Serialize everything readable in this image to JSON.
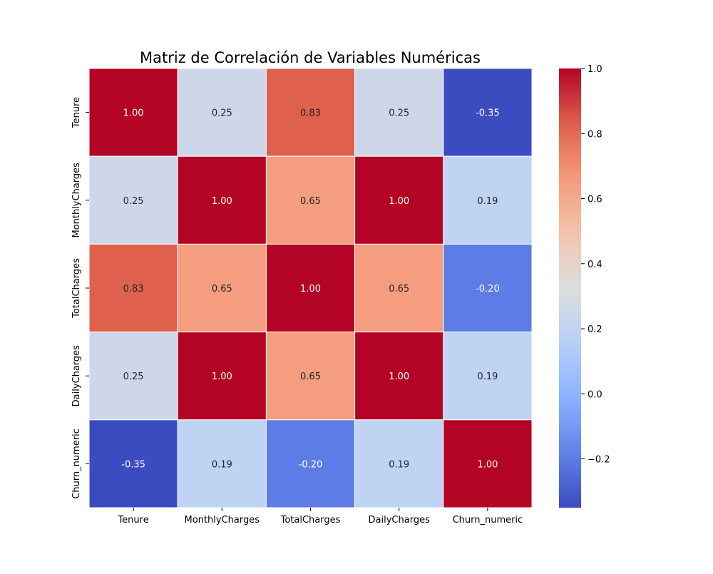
{
  "chart_data": {
    "type": "heatmap",
    "title": "Matriz de Correlación de Variables Numéricas",
    "xlabel": "",
    "ylabel": "",
    "x_categories": [
      "Tenure",
      "MonthlyCharges",
      "TotalCharges",
      "DailyCharges",
      "Churn_numeric"
    ],
    "y_categories": [
      "Tenure",
      "MonthlyCharges",
      "TotalCharges",
      "DailyCharges",
      "Churn_numeric"
    ],
    "values": [
      [
        1.0,
        0.25,
        0.83,
        0.25,
        -0.35
      ],
      [
        0.25,
        1.0,
        0.65,
        1.0,
        0.19
      ],
      [
        0.83,
        0.65,
        1.0,
        0.65,
        -0.2
      ],
      [
        0.25,
        1.0,
        0.65,
        1.0,
        0.19
      ],
      [
        -0.35,
        0.19,
        -0.2,
        0.19,
        1.0
      ]
    ],
    "value_format": "2 decimals",
    "colormap": "coolwarm",
    "color_range": [
      -0.35,
      1.0
    ],
    "colorbar_ticks": [
      -0.2,
      0.0,
      0.2,
      0.4,
      0.6,
      0.8,
      1.0
    ],
    "colorbar_tick_labels": [
      "−0.2",
      "0.0",
      "0.2",
      "0.4",
      "0.6",
      "0.8",
      "1.0"
    ],
    "cell_border_color": "#ffffff",
    "grid": false,
    "legend": "colorbar-right"
  }
}
